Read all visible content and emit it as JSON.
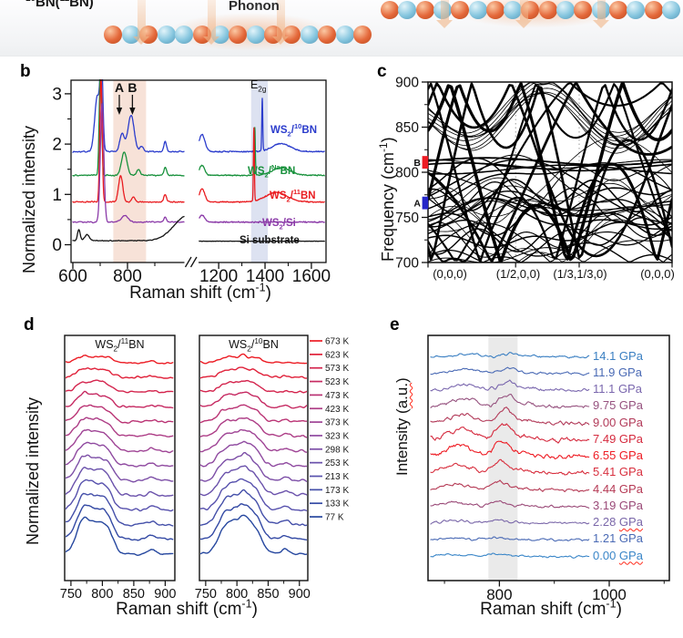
{
  "banner": {
    "bn_label": "^10^BN(^11^BN)",
    "phonon_label": "Phonon",
    "boron_color": "#e2653a",
    "nitrogen_color": "#82c4de",
    "arrow_color": "#f1b78a",
    "left_chain": "OBOBBOBOBOOBOBO",
    "right_chain": "OBOBOBOBOOBOBOBOB"
  },
  "chart_data": [
    {
      "id": "b",
      "type": "line",
      "panel_letter": "b",
      "xlabel": "Raman shift (cm^-1^)",
      "ylabel": "Normalized intensity",
      "yticks": [
        0,
        1,
        2,
        3
      ],
      "yminor": [
        0.5,
        1.5,
        2.5
      ],
      "ylim": [
        0,
        3.3
      ],
      "x_break": true,
      "xticks_left": [
        600,
        800
      ],
      "xminor_left": [
        700,
        900
      ],
      "xticks_right": [
        1200,
        1400,
        1600
      ],
      "xminor_right": [
        1300,
        1500
      ],
      "shaded_bands": [
        {
          "from": 748,
          "to": 868,
          "color": "#f7e2d8"
        },
        {
          "from": 1340,
          "to": 1412,
          "color": "#dde2f1"
        }
      ],
      "annotations": [
        {
          "text": "A",
          "x": 770,
          "arrow": true
        },
        {
          "text": "B",
          "x": 818,
          "arrow": true
        },
        {
          "text": "E_2g_",
          "x": 1384,
          "arrow": false
        }
      ],
      "series": [
        {
          "label": "WS_2_/^10^BN",
          "color": "#2b3ccc",
          "offset": 1.85,
          "peaks": [
            [
              690,
              1.1,
              14
            ],
            [
              705,
              1.6,
              7
            ],
            [
              780,
              0.35,
              12
            ],
            [
              813,
              0.72,
              16
            ],
            [
              852,
              0.1,
              9
            ],
            [
              938,
              0.2,
              7
            ],
            [
              1128,
              0.34,
              18
            ],
            [
              1388,
              1.05,
              3
            ],
            [
              1470,
              0.16,
              55
            ]
          ]
        },
        {
          "label": "WS_2_/^Na^BN",
          "color": "#18913c",
          "offset": 1.38,
          "peaks": [
            [
              701,
              2.2,
              6
            ],
            [
              788,
              0.46,
              14
            ],
            [
              840,
              0.12,
              9
            ],
            [
              938,
              0.16,
              7
            ],
            [
              1128,
              0.2,
              16
            ],
            [
              1356,
              0.95,
              3
            ],
            [
              1470,
              0.15,
              55
            ]
          ]
        },
        {
          "label": "WS_2_/^11^BN",
          "color": "#e91c20",
          "offset": 0.85,
          "peaks": [
            [
              703,
              2.5,
              6
            ],
            [
              775,
              0.52,
              11
            ],
            [
              822,
              0.1,
              9
            ],
            [
              938,
              0.15,
              7
            ],
            [
              1128,
              0.26,
              17
            ],
            [
              1352,
              1.45,
              3
            ],
            [
              1450,
              0.19,
              65
            ]
          ]
        },
        {
          "label": "WS_2_/Si",
          "color": "#8b3aa8",
          "offset": 0.45,
          "peaks": [
            [
              707,
              2.35,
              9
            ],
            [
              790,
              0.13,
              18
            ],
            [
              938,
              0.1,
              7
            ],
            [
              1128,
              0.14,
              16
            ]
          ]
        },
        {
          "label": "Si substrate",
          "color": "#141414",
          "offset": 0.08,
          "peaks": [
            [
              622,
              0.22,
              7
            ],
            [
              652,
              0.12,
              12
            ],
            [
              1020,
              0.5,
              70
            ]
          ]
        }
      ]
    },
    {
      "id": "c",
      "type": "line",
      "panel_letter": "c",
      "ylabel": "Frequency (cm^-1^)",
      "yticks": [
        700,
        750,
        800,
        850,
        900
      ],
      "ylim": [
        700,
        900
      ],
      "kpoint_labels": [
        "(0,0,0)",
        "(1/2,0,0)",
        "(1/3,1/3,0)",
        "(0,0,0)"
      ],
      "markers": [
        {
          "text": "B",
          "color": "#ee1c24",
          "from": 804,
          "to": 818
        },
        {
          "text": "A",
          "color": "#2426c8",
          "from": 759,
          "to": 773
        }
      ]
    },
    {
      "id": "d",
      "type": "line",
      "panel_letter": "d",
      "ylabel": "Normalized intensity",
      "xlabel": "Raman shift (cm^-1^)",
      "xticks": [
        750,
        800,
        850,
        900
      ],
      "xminor": [
        775,
        825,
        875
      ],
      "subpanels": [
        {
          "title": "WS_2_/^11^BN",
          "peak_center": 775
        },
        {
          "title": "WS_2_/^10^BN",
          "peak_center": 810
        }
      ],
      "temperatures": [
        {
          "label": "673 K",
          "color": "#ec1c24"
        },
        {
          "label": "623 K",
          "color": "#e02039"
        },
        {
          "label": "573 K",
          "color": "#d4244d"
        },
        {
          "label": "523 K",
          "color": "#c62a62"
        },
        {
          "label": "473 K",
          "color": "#ba3374"
        },
        {
          "label": "423 K",
          "color": "#ad3d86"
        },
        {
          "label": "373 K",
          "color": "#9f4495"
        },
        {
          "label": "323 K",
          "color": "#8f4aa0"
        },
        {
          "label": "298 K",
          "color": "#7d4fa7"
        },
        {
          "label": "253 K",
          "color": "#6a51ab"
        },
        {
          "label": "213 K",
          "color": "#5751ad"
        },
        {
          "label": "173 K",
          "color": "#444fa9"
        },
        {
          "label": "133 K",
          "color": "#3349a4"
        },
        {
          "label": "77 K",
          "color": "#26479f"
        }
      ]
    },
    {
      "id": "e",
      "type": "line",
      "panel_letter": "e",
      "ylabel": "Intensity (~a.u.~)",
      "xlabel": "Raman shift (cm^-1^)",
      "xticks": [
        800,
        1000
      ],
      "xminor": [
        700,
        900,
        1100
      ],
      "shaded_band": {
        "from": 780,
        "to": 833,
        "color": "#dcdcdc"
      },
      "pressures": [
        {
          "label": "14.1 GPa",
          "color": "#3a7fc2",
          "amp": 4,
          "center": 822
        },
        {
          "label": "11.9 GPa",
          "color": "#4a6ab5",
          "amp": 6,
          "center": 818
        },
        {
          "label": "11.1 GPa",
          "color": "#7a67ae",
          "amp": 9,
          "center": 816
        },
        {
          "label": "9.75 GPa",
          "color": "#96527f",
          "amp": 13,
          "center": 814
        },
        {
          "label": "9.00 GPa",
          "color": "#b23a59",
          "amp": 15,
          "center": 812
        },
        {
          "label": "7.49 GPa",
          "color": "#d52a3e",
          "amp": 17,
          "center": 808
        },
        {
          "label": "6.55 GPa",
          "color": "#ee1c24",
          "amp": 17,
          "center": 805
        },
        {
          "label": "5.41 GPa",
          "color": "#d8303f",
          "amp": 14,
          "center": 802
        },
        {
          "label": "4.44 GPa",
          "color": "#b53a55",
          "amp": 9,
          "center": 800
        },
        {
          "label": "3.19 GPa",
          "color": "#9a4a78",
          "amp": 6,
          "center": 798
        },
        {
          "label": "2.28 ~GPa~",
          "color": "#7a67a9",
          "amp": 4,
          "center": 796
        },
        {
          "label": "1.21 GPa",
          "color": "#4a6ab5",
          "amp": 3,
          "center": 795
        },
        {
          "label": "0.00 ~GPa~",
          "color": "#3a86c8",
          "amp": 3,
          "center": 794
        }
      ]
    }
  ]
}
